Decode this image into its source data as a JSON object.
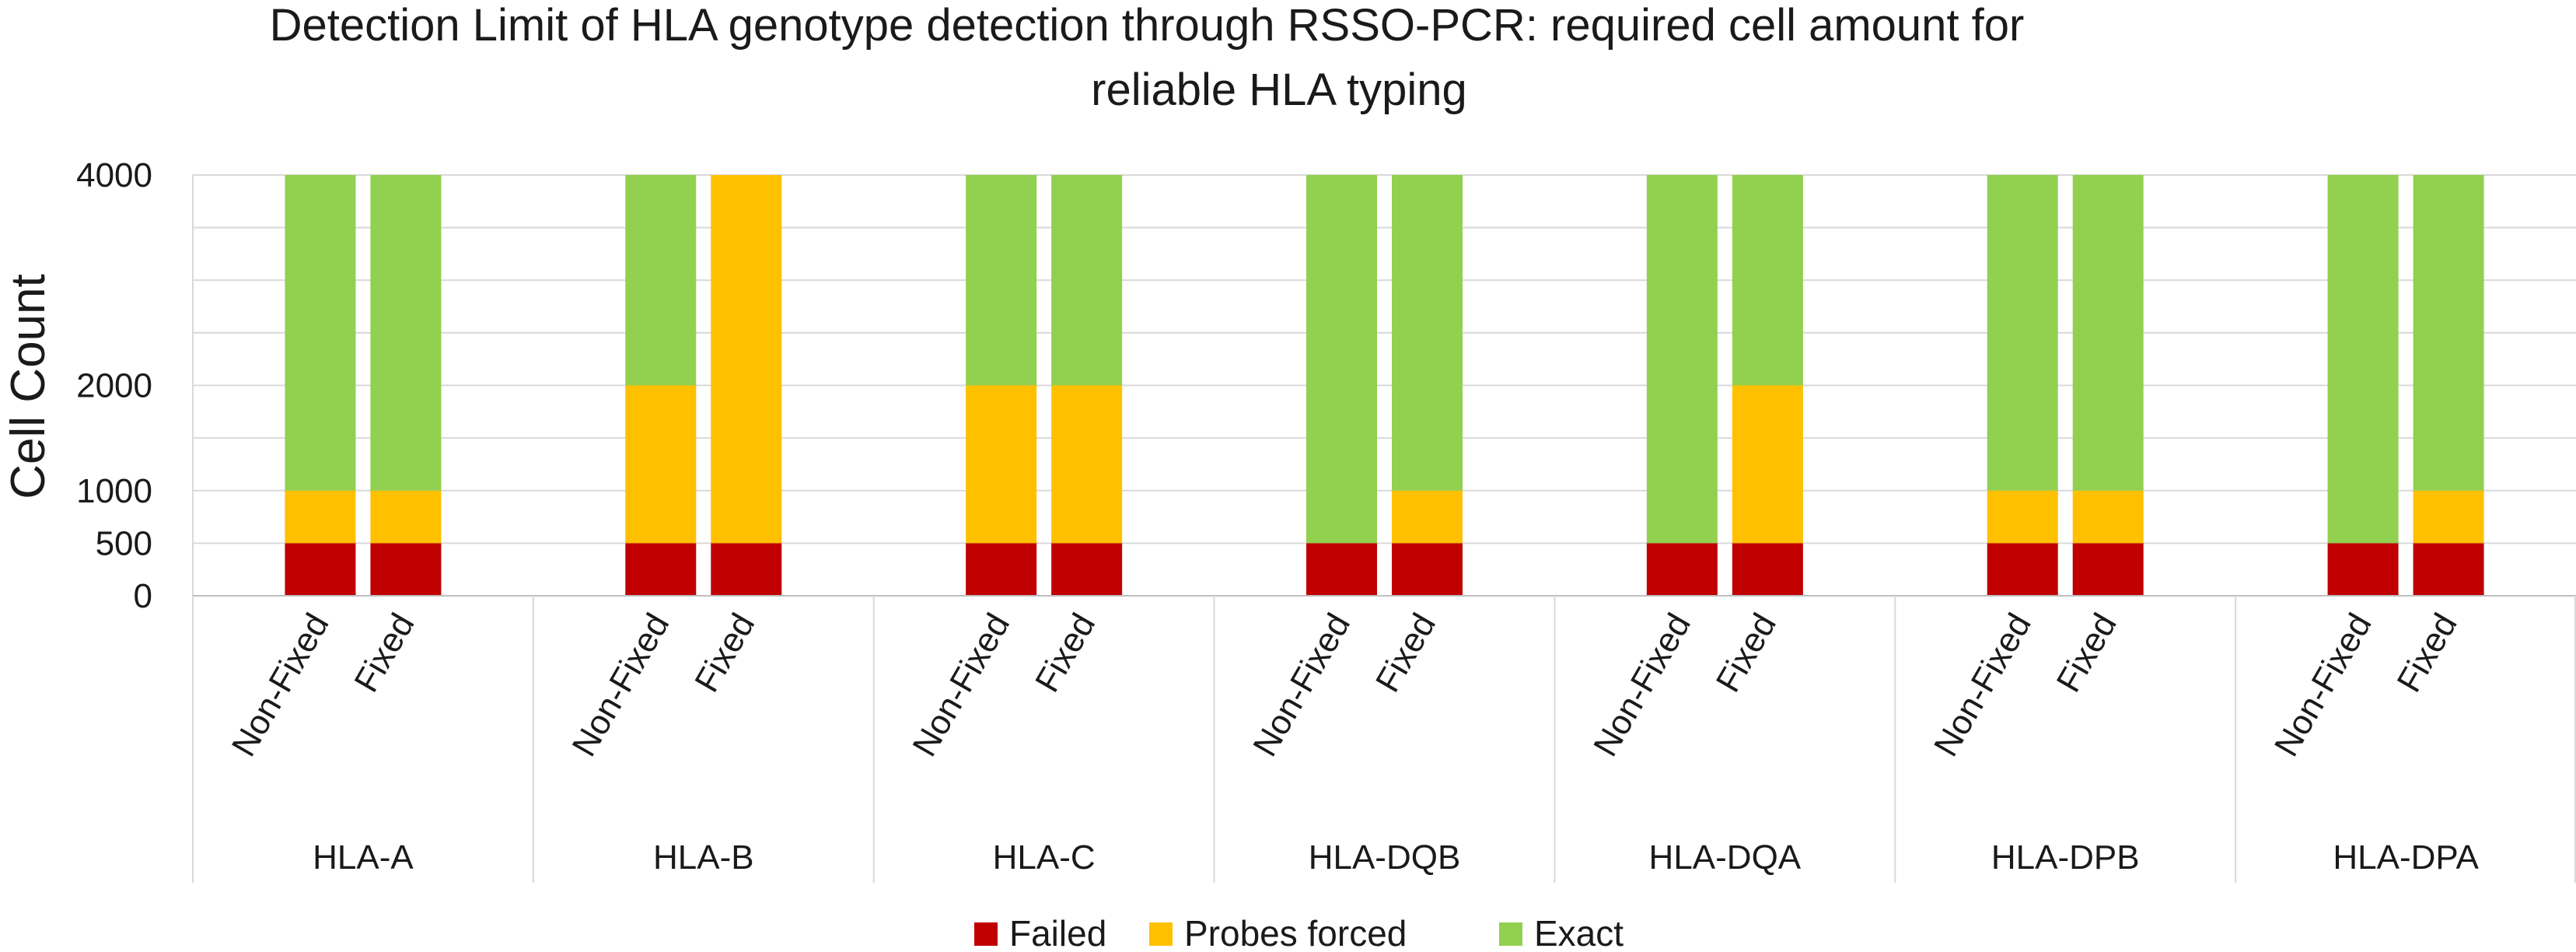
{
  "chart_data": {
    "type": "bar",
    "stacked": true,
    "title_lines": [
      "Detection Limit of HLA genotype detection through RSSO-PCR: required cell amount for",
      "reliable HLA typing"
    ],
    "ylabel": "Cell Count",
    "xlabel": "",
    "ylim": [
      0,
      4000
    ],
    "yticks": [
      0,
      500,
      1000,
      2000,
      4000
    ],
    "grid": true,
    "legend_position": "bottom",
    "groups": [
      "HLA-A",
      "HLA-B",
      "HLA-C",
      "HLA-DQB",
      "HLA-DQA",
      "HLA-DPB",
      "HLA-DPA"
    ],
    "subcategories": [
      "Non-Fixed",
      "Fixed"
    ],
    "series": [
      {
        "name": "Failed",
        "color": "#c00000",
        "values": [
          500,
          500,
          500,
          500,
          500,
          500,
          500,
          500,
          500,
          500,
          500,
          500,
          500,
          500
        ]
      },
      {
        "name": "Probes forced",
        "color": "#ffc000",
        "values": [
          500,
          500,
          1500,
          3500,
          1500,
          1500,
          0,
          500,
          0,
          1500,
          500,
          500,
          0,
          500
        ]
      },
      {
        "name": "Exact",
        "color": "#92d050",
        "values": [
          3000,
          3000,
          2000,
          0,
          2000,
          2000,
          3500,
          3000,
          3500,
          2000,
          3000,
          3000,
          3500,
          3000
        ]
      }
    ]
  }
}
